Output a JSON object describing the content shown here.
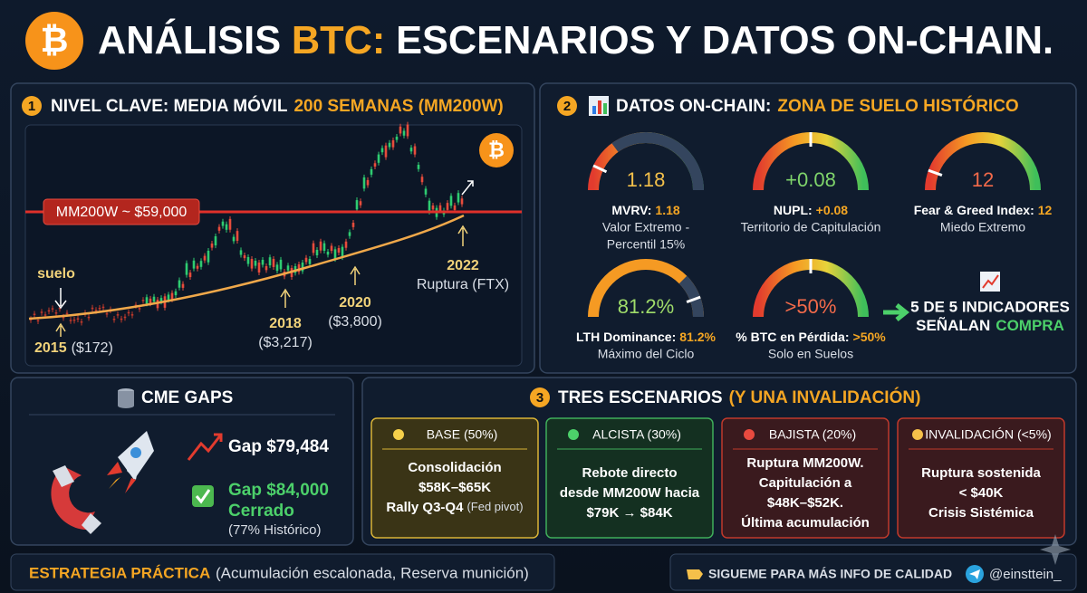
{
  "header": {
    "title": [
      "ANÁLISIS",
      "BTC:",
      "ESCENARIOS Y DATOS ON-CHAIN."
    ]
  },
  "panel1": {
    "number": "1",
    "title": [
      "NIVEL CLAVE: MEDIA MÓVIL",
      "200 SEMANAS (MM200W)"
    ],
    "level_label": "MM200W ~ $59,000",
    "annotations": {
      "suelo": "suelo",
      "y2015": [
        "2015",
        "($172)"
      ],
      "y2018": [
        "2018",
        "($3,217)"
      ],
      "y2020": [
        "2020",
        "($3,800)"
      ],
      "y2022": [
        "2022",
        "Ruptura (FTX)"
      ]
    }
  },
  "panel2": {
    "number": "2",
    "title": [
      "DATOS ON-CHAIN:",
      "ZONA DE SUELO HISTÓRICO"
    ],
    "gauges": [
      {
        "value": "1.18",
        "label": "MVRV:",
        "label_value": "1.18",
        "note": [
          "Valor Extremo -",
          "Percentil 15%"
        ]
      },
      {
        "value": "+0.08",
        "label": "NUPL:",
        "label_value": "+0.08",
        "note": [
          "Territorio de Capitulación"
        ]
      },
      {
        "value": "12",
        "label": "Fear & Greed Index:",
        "label_value": "12",
        "note": [
          "Miedo Extremo"
        ]
      },
      {
        "value": "81.2%",
        "label": "LTH Dominance:",
        "label_value": "81.2%",
        "note": [
          "Máximo del Ciclo"
        ]
      },
      {
        "value": ">50%",
        "label": "% BTC en Pérdida:",
        "label_value": ">50%",
        "note": [
          "Solo en Suelos"
        ]
      }
    ],
    "summary": [
      "5 DE 5 INDICADORES",
      "SEÑALAN",
      "COMPRA"
    ]
  },
  "cme": {
    "title": "CME GAPS",
    "gap_open": "Gap $79,484",
    "gap_closed": [
      "Gap $84,000",
      "Cerrado"
    ],
    "gap_note": "(77% Histórico)"
  },
  "scenarios": {
    "number": "3",
    "title": [
      "TRES ESCENARIOS",
      "(Y UNA INVALIDACIÓN)"
    ],
    "cards": [
      {
        "title": "BASE (50%)",
        "lines": [
          "Consolidación",
          "$58K–$65K",
          "Rally Q3-Q4"
        ],
        "note": "(Fed pivot)"
      },
      {
        "title": "ALCISTA (30%)",
        "lines": [
          "Rebote directo",
          "desde MM200W hacia",
          "$79K → $84K"
        ]
      },
      {
        "title": "BAJISTA (20%)",
        "lines": [
          "Ruptura MM200W.",
          "Capitulación a",
          "$48K–$52K.",
          "Última acumulación"
        ]
      },
      {
        "title": "INVALIDACIÓN (<5%)",
        "lines": [
          "Ruptura sostenida",
          "< $40K",
          "Crisis Sistémica"
        ]
      }
    ]
  },
  "footer": {
    "strategy_label": "ESTRATEGIA PRÁCTICA",
    "strategy_text": "(Acumulación escalonada, Reserva munición)",
    "cta": "SIGUEME PARA MÁS INFO DE CALIDAD",
    "handle": "@einsttein_"
  }
}
